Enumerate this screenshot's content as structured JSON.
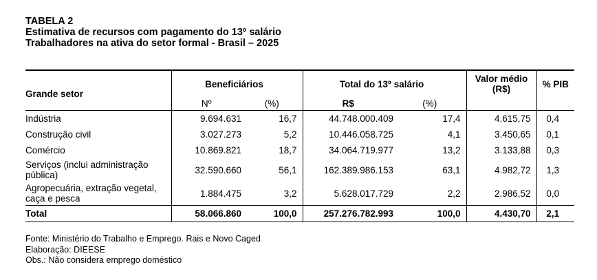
{
  "header": {
    "title": "TABELA 2",
    "subtitle1": "Estimativa de recursos com pagamento do 13º salário",
    "subtitle2": "Trabalhadores na ativa do setor formal - Brasil – 2025"
  },
  "table": {
    "columns": [
      "Grande setor",
      "Beneficiários",
      "Total do 13º salário",
      "Valor médio (R$)",
      "% PIB"
    ],
    "subcolumns": [
      "Nº",
      "(%)",
      "R$",
      "(%)"
    ],
    "rows": [
      [
        "Indústria",
        "9.694.631",
        "16,7",
        "44.748.000.409",
        "17,4",
        "4.615,75",
        "0,4"
      ],
      [
        "Construção civil",
        "3.027.273",
        "5,2",
        "10.446.058.725",
        "4,1",
        "3.450,65",
        "0,1"
      ],
      [
        "Comércio",
        "10.869.821",
        "18,7",
        "34.064.719.977",
        "13,2",
        "3.133,88",
        "0,3"
      ],
      [
        "Serviços (inclui administração pública)",
        "32.590.660",
        "56,1",
        "162.389.986.153",
        "63,1",
        "4.982,72",
        "1,3"
      ],
      [
        "Agropecuária, extração vegetal, caça e pesca",
        "1.884.475",
        "3,2",
        "5.628.017.729",
        "2,2",
        "2.986,52",
        "0,0"
      ]
    ],
    "total": [
      "Total",
      "58.066.860",
      "100,0",
      "257.276.782.993",
      "100,0",
      "4.430,70",
      "2,1"
    ]
  },
  "notes": [
    "Fonte: Ministério do Trabalho e Emprego. Rais e Novo Caged",
    "Elaboração: DIEESE",
    "Obs.: Não considera emprego doméstico"
  ]
}
